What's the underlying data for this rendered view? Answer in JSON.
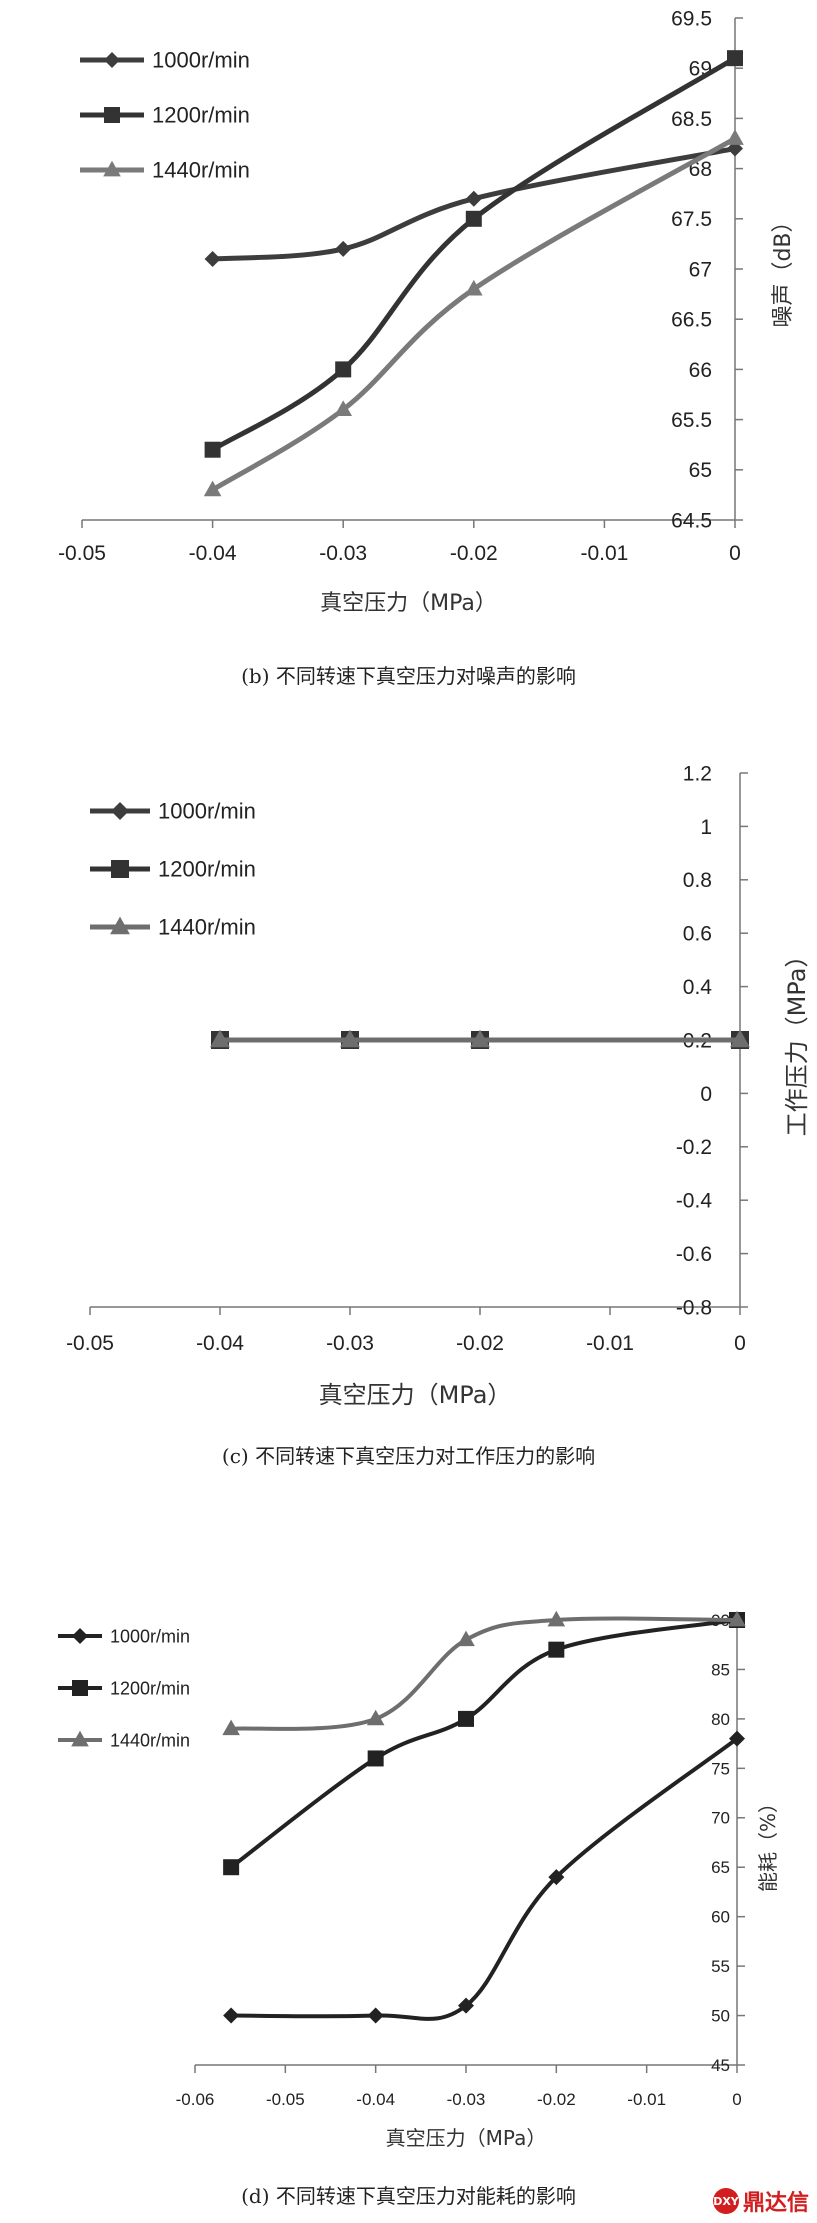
{
  "chart_data": [
    {
      "type": "line",
      "caption": "(b) 不同转速下真空压力对噪声的影响",
      "xlabel": "真空压力（MPa）",
      "ylabel": "噪声（dB）",
      "xlim": [
        -0.05,
        0
      ],
      "ylim": [
        64.5,
        69.5
      ],
      "x_ticks": [
        -0.05,
        -0.04,
        -0.03,
        -0.02,
        -0.01,
        0
      ],
      "x_tick_labels": [
        "-0.05",
        "-0.04",
        "-0.03",
        "-0.02",
        "-0.01",
        "0"
      ],
      "y_ticks": [
        64.5,
        65,
        65.5,
        66,
        66.5,
        67,
        67.5,
        68,
        68.5,
        69,
        69.5
      ],
      "y_tick_labels": [
        "64.5",
        "65",
        "65.5",
        "66",
        "66.5",
        "67",
        "67.5",
        "68",
        "68.5",
        "69",
        "69.5"
      ],
      "y_axis_side": "right",
      "grid": false,
      "legend_position": "top-left",
      "series": [
        {
          "name": "1000r/min",
          "marker": "diamond",
          "color": "#3d3d3d",
          "x": [
            -0.04,
            -0.03,
            -0.02,
            0
          ],
          "y": [
            67.1,
            67.2,
            67.7,
            68.2
          ]
        },
        {
          "name": "1200r/min",
          "marker": "square",
          "color": "#333333",
          "x": [
            -0.04,
            -0.03,
            -0.02,
            0
          ],
          "y": [
            65.2,
            66.0,
            67.5,
            69.1
          ]
        },
        {
          "name": "1440r/min",
          "marker": "triangle",
          "color": "#7a7a7a",
          "x": [
            -0.04,
            -0.03,
            -0.02,
            0
          ],
          "y": [
            64.8,
            65.6,
            66.8,
            68.3
          ]
        }
      ]
    },
    {
      "type": "line",
      "caption": "(c) 不同转速下真空压力对工作压力的影响",
      "xlabel": "真空压力（MPa）",
      "ylabel": "工作压力（MPa）",
      "xlim": [
        -0.05,
        0
      ],
      "ylim": [
        -0.8,
        1.2
      ],
      "x_ticks": [
        -0.05,
        -0.04,
        -0.03,
        -0.02,
        -0.01,
        0
      ],
      "x_tick_labels": [
        "-0.05",
        "-0.04",
        "-0.03",
        "-0.02",
        "-0.01",
        "0"
      ],
      "y_ticks": [
        -0.8,
        -0.6,
        -0.4,
        -0.2,
        0,
        0.2,
        0.4,
        0.6,
        0.8,
        1,
        1.2
      ],
      "y_tick_labels": [
        "-0.8",
        "-0.6",
        "-0.4",
        "-0.2",
        "0",
        "0.2",
        "0.4",
        "0.6",
        "0.8",
        "1",
        "1.2"
      ],
      "y_axis_side": "right",
      "grid": false,
      "legend_position": "top-left",
      "series": [
        {
          "name": "1000r/min",
          "marker": "diamond",
          "color": "#3d3d3d",
          "x": [
            -0.04,
            -0.03,
            -0.02,
            0
          ],
          "y": [
            0.2,
            0.2,
            0.2,
            0.2
          ]
        },
        {
          "name": "1200r/min",
          "marker": "square",
          "color": "#333333",
          "x": [
            -0.04,
            -0.03,
            -0.02,
            0
          ],
          "y": [
            0.2,
            0.2,
            0.2,
            0.2
          ]
        },
        {
          "name": "1440r/min",
          "marker": "triangle",
          "color": "#6e6e6e",
          "x": [
            -0.04,
            -0.03,
            -0.02,
            0
          ],
          "y": [
            0.2,
            0.2,
            0.2,
            0.2
          ]
        }
      ]
    },
    {
      "type": "line",
      "caption": "(d) 不同转速下真空压力对能耗的影响",
      "xlabel": "真空压力（MPa）",
      "ylabel": "能耗（%）",
      "xlim": [
        -0.06,
        0
      ],
      "ylim": [
        45,
        90
      ],
      "x_ticks": [
        -0.06,
        -0.05,
        -0.04,
        -0.03,
        -0.02,
        -0.01,
        0
      ],
      "x_tick_labels": [
        "-0.06",
        "-0.05",
        "-0.04",
        "-0.03",
        "-0.02",
        "-0.01",
        "0"
      ],
      "y_ticks": [
        45,
        50,
        55,
        60,
        65,
        70,
        75,
        80,
        85,
        90
      ],
      "y_tick_labels": [
        "45",
        "50",
        "55",
        "60",
        "65",
        "70",
        "75",
        "80",
        "85",
        "90"
      ],
      "y_axis_side": "right",
      "grid": false,
      "legend_position": "top-left",
      "series": [
        {
          "name": "1000r/min",
          "marker": "diamond",
          "color": "#222222",
          "x": [
            -0.056,
            -0.04,
            -0.03,
            -0.02,
            0
          ],
          "y": [
            50,
            50,
            51,
            64,
            78
          ]
        },
        {
          "name": "1200r/min",
          "marker": "square",
          "color": "#222222",
          "x": [
            -0.056,
            -0.04,
            -0.03,
            -0.02,
            0
          ],
          "y": [
            65,
            76,
            80,
            87,
            90
          ]
        },
        {
          "name": "1440r/min",
          "marker": "triangle",
          "color": "#6e6e6e",
          "x": [
            -0.056,
            -0.04,
            -0.03,
            -0.02,
            0
          ],
          "y": [
            79,
            80,
            88,
            90,
            90
          ]
        }
      ]
    }
  ],
  "watermark": {
    "logo_text": "DXY",
    "text": "鼎达信"
  }
}
